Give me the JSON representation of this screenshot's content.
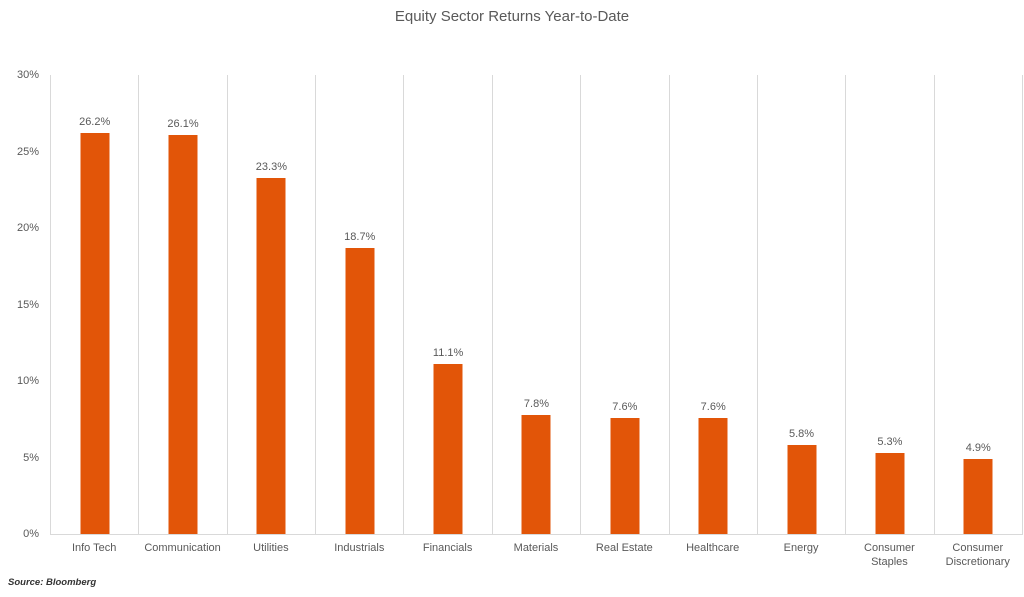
{
  "source_note": "Source: Bloomberg",
  "colors": {
    "bar": "#E25508",
    "gridline": "#D9D9D9",
    "title_text": "#595959",
    "axis_text": "#595959",
    "data_label_text": "#595959"
  },
  "chart_data": {
    "type": "bar",
    "title": "Equity Sector Returns Year-to-Date",
    "categories": [
      "Info Tech",
      "Communication",
      "Utilities",
      "Industrials",
      "Financials",
      "Materials",
      "Real Estate",
      "Healthcare",
      "Energy",
      "Consumer Staples",
      "Consumer Discretionary"
    ],
    "values": [
      26.2,
      26.1,
      23.3,
      18.7,
      11.1,
      7.8,
      7.6,
      7.6,
      5.8,
      5.3,
      4.9
    ],
    "value_labels": [
      "26.2%",
      "26.1%",
      "23.3%",
      "18.7%",
      "11.1%",
      "7.8%",
      "7.6%",
      "7.6%",
      "5.8%",
      "5.3%",
      "4.9%"
    ],
    "xlabel": "",
    "ylabel": "",
    "ylim": [
      0,
      30
    ],
    "ytick_labels": [
      "0%",
      "5%",
      "10%",
      "15%",
      "20%",
      "25%",
      "30%"
    ],
    "grid": "vertical-category-separators",
    "legend": "none",
    "bar_color": "#E25508",
    "source": "Source: Bloomberg"
  }
}
